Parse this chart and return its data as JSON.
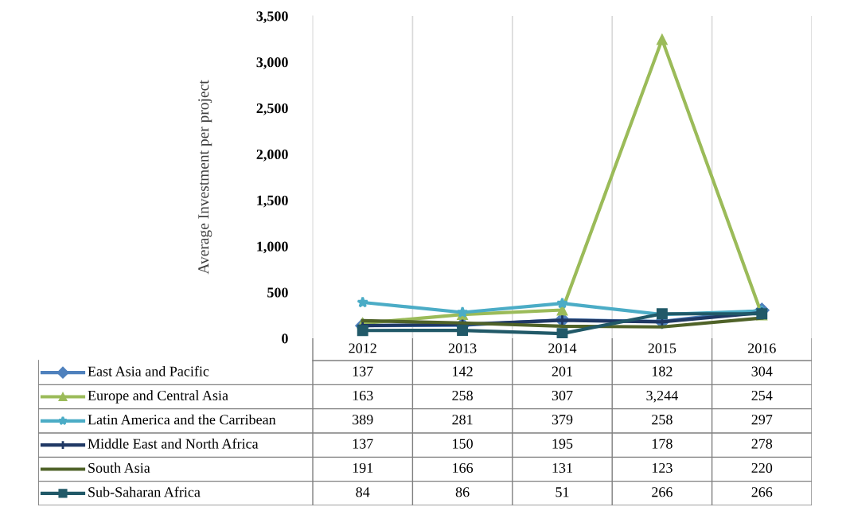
{
  "chart_data": {
    "type": "line",
    "ylabel": "Average Investment per project",
    "categories": [
      "2012",
      "2013",
      "2014",
      "2015",
      "2016"
    ],
    "series": [
      {
        "name": "East Asia and Pacific",
        "color": "#4f81bd",
        "marker": "diamond",
        "values": [
          137,
          142,
          201,
          182,
          304
        ],
        "value_labels": [
          "137",
          "142",
          "201",
          "182",
          "304"
        ]
      },
      {
        "name": "Europe and Central Asia",
        "color": "#9bbb59",
        "marker": "triangle",
        "values": [
          163,
          258,
          307,
          3244,
          254
        ],
        "value_labels": [
          "163",
          "258",
          "307",
          "3,244",
          "254"
        ]
      },
      {
        "name": "Latin America and the Carribean",
        "color": "#4bacc6",
        "marker": "star",
        "values": [
          389,
          281,
          379,
          258,
          297
        ],
        "value_labels": [
          "389",
          "281",
          "379",
          "258",
          "297"
        ]
      },
      {
        "name": "Middle East and North Africa",
        "color": "#1f3864",
        "marker": "cross",
        "values": [
          137,
          150,
          195,
          178,
          278
        ],
        "value_labels": [
          "137",
          "150",
          "195",
          "178",
          "278"
        ]
      },
      {
        "name": "South Asia",
        "color": "#4f6228",
        "marker": "none",
        "values": [
          191,
          166,
          131,
          123,
          220
        ],
        "value_labels": [
          "191",
          "166",
          "131",
          "123",
          "220"
        ]
      },
      {
        "name": "Sub-Saharan Africa",
        "color": "#215968",
        "marker": "square",
        "values": [
          84,
          86,
          51,
          266,
          266
        ],
        "value_labels": [
          "84",
          "86",
          "51",
          "266",
          "266"
        ]
      }
    ],
    "ylim": [
      0,
      3500
    ],
    "yticks": [
      0,
      {
        "value": 500,
        "label": "500"
      },
      {
        "value": 1000,
        "label": "1,000"
      },
      {
        "value": 1500,
        "label": "1,500"
      },
      {
        "value": 2000,
        "label": "2,000"
      },
      {
        "value": 2500,
        "label": "2,500"
      },
      {
        "value": 3000,
        "label": "3,000"
      },
      {
        "value": 3500,
        "label": "3,500"
      }
    ],
    "grid": "x",
    "legend": "bottom",
    "line_style": "solid"
  }
}
